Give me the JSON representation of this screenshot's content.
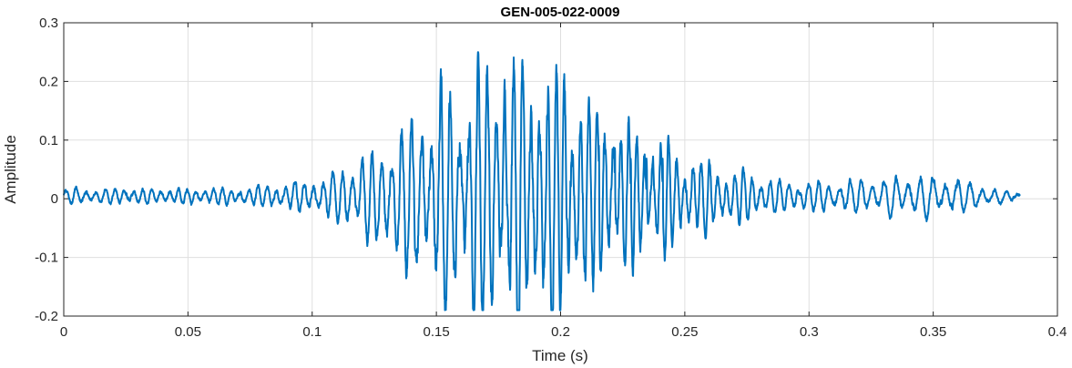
{
  "chart_data": {
    "type": "line",
    "title": "GEN-005-022-0009",
    "xlabel": "Time (s)",
    "ylabel": "Amplitude",
    "xlim": [
      0,
      0.4
    ],
    "ylim": [
      -0.2,
      0.3
    ],
    "xticks": [
      0,
      0.05,
      0.1,
      0.15,
      0.2,
      0.25,
      0.3,
      0.35,
      0.4
    ],
    "xtick_labels": [
      "0",
      "0.05",
      "0.1",
      "0.15",
      "0.2",
      "0.25",
      "0.3",
      "0.35",
      "0.4"
    ],
    "yticks": [
      -0.2,
      -0.1,
      0,
      0.1,
      0.2,
      0.3
    ],
    "ytick_labels": [
      "-0.2",
      "-0.1",
      "0",
      "0.1",
      "0.2",
      "0.3"
    ],
    "grid": true,
    "line_color": "#0072BD",
    "series": [
      {
        "x_start": 0,
        "x_end": 0.385,
        "max_positive_peak": 0.25,
        "peak_positive_time": 0.18,
        "min_negative_peak": -0.19,
        "peak_negative_time": 0.19
      }
    ]
  }
}
